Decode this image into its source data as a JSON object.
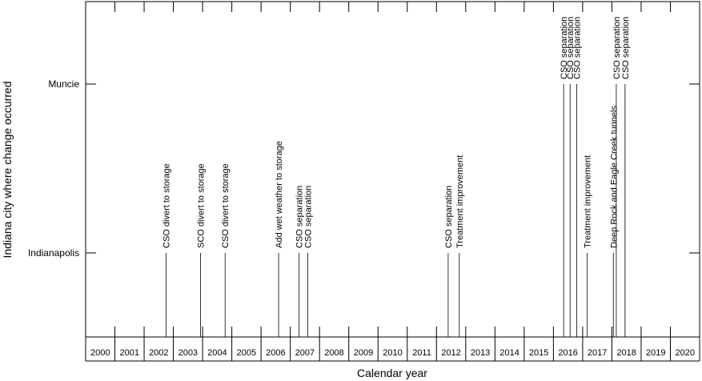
{
  "chart_data": {
    "type": "timeline",
    "xlabel": "Calendar year",
    "ylabel": "Indiana city where change occurred",
    "xlim": [
      2000,
      2021
    ],
    "x_ticks": [
      "2000",
      "2001",
      "2002",
      "2003",
      "2004",
      "2005",
      "2006",
      "2007",
      "2008",
      "2009",
      "2010",
      "2011",
      "2012",
      "2013",
      "2014",
      "2015",
      "2016",
      "2017",
      "2018",
      "2019",
      "2020"
    ],
    "y_categories": [
      "Indianapolis",
      "Muncie"
    ],
    "grid": false,
    "events": [
      {
        "city": "Indianapolis",
        "year": 2002.75,
        "label": "CSO divert to storage"
      },
      {
        "city": "Indianapolis",
        "year": 2003.93,
        "label": "SCO divert to storage"
      },
      {
        "city": "Indianapolis",
        "year": 2004.77,
        "label": "CSO divert to storage"
      },
      {
        "city": "Indianapolis",
        "year": 2006.6,
        "label": "Add wet weather to storage"
      },
      {
        "city": "Indianapolis",
        "year": 2007.3,
        "label": "CSO separation"
      },
      {
        "city": "Indianapolis",
        "year": 2007.6,
        "label": "CSO separation"
      },
      {
        "city": "Indianapolis",
        "year": 2012.4,
        "label": "CSO separation"
      },
      {
        "city": "Indianapolis",
        "year": 2012.78,
        "label": "Treatment improvement"
      },
      {
        "city": "Muncie",
        "year": 2016.35,
        "label": "CSO separation"
      },
      {
        "city": "Muncie",
        "year": 2016.57,
        "label": "CSO separation"
      },
      {
        "city": "Muncie",
        "year": 2016.8,
        "label": "CSO separation"
      },
      {
        "city": "Indianapolis",
        "year": 2017.15,
        "label": "Treatment improvement"
      },
      {
        "city": "Indianapolis",
        "year": 2018.05,
        "label": "Deep Rock and Eagle Creek tunnels"
      },
      {
        "city": "Muncie",
        "year": 2018.15,
        "label": "CSO separation"
      },
      {
        "city": "Muncie",
        "year": 2018.45,
        "label": "CSO separation"
      }
    ]
  }
}
